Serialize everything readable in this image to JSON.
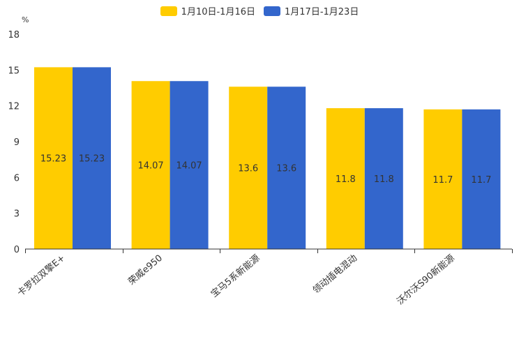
{
  "chart_data": {
    "type": "bar",
    "title": "",
    "ylabel": "%",
    "xlabel": "",
    "ylim": [
      0,
      18
    ],
    "yticks": [
      0,
      3,
      6,
      9,
      12,
      15,
      18
    ],
    "grid": false,
    "legend_position": "top-center",
    "categories": [
      "卡罗拉双擎E+",
      "荣威e950",
      "宝马5系新能源",
      "领动插电混动",
      "沃尔沃S90新能源"
    ],
    "series": [
      {
        "name": "1月10日-1月16日",
        "color": "#FFCC00",
        "values": [
          15.23,
          14.07,
          13.6,
          11.8,
          11.7
        ]
      },
      {
        "name": "1月17日-1月23日",
        "color": "#3366CC",
        "values": [
          15.23,
          14.07,
          13.6,
          11.8,
          11.7
        ]
      }
    ]
  }
}
